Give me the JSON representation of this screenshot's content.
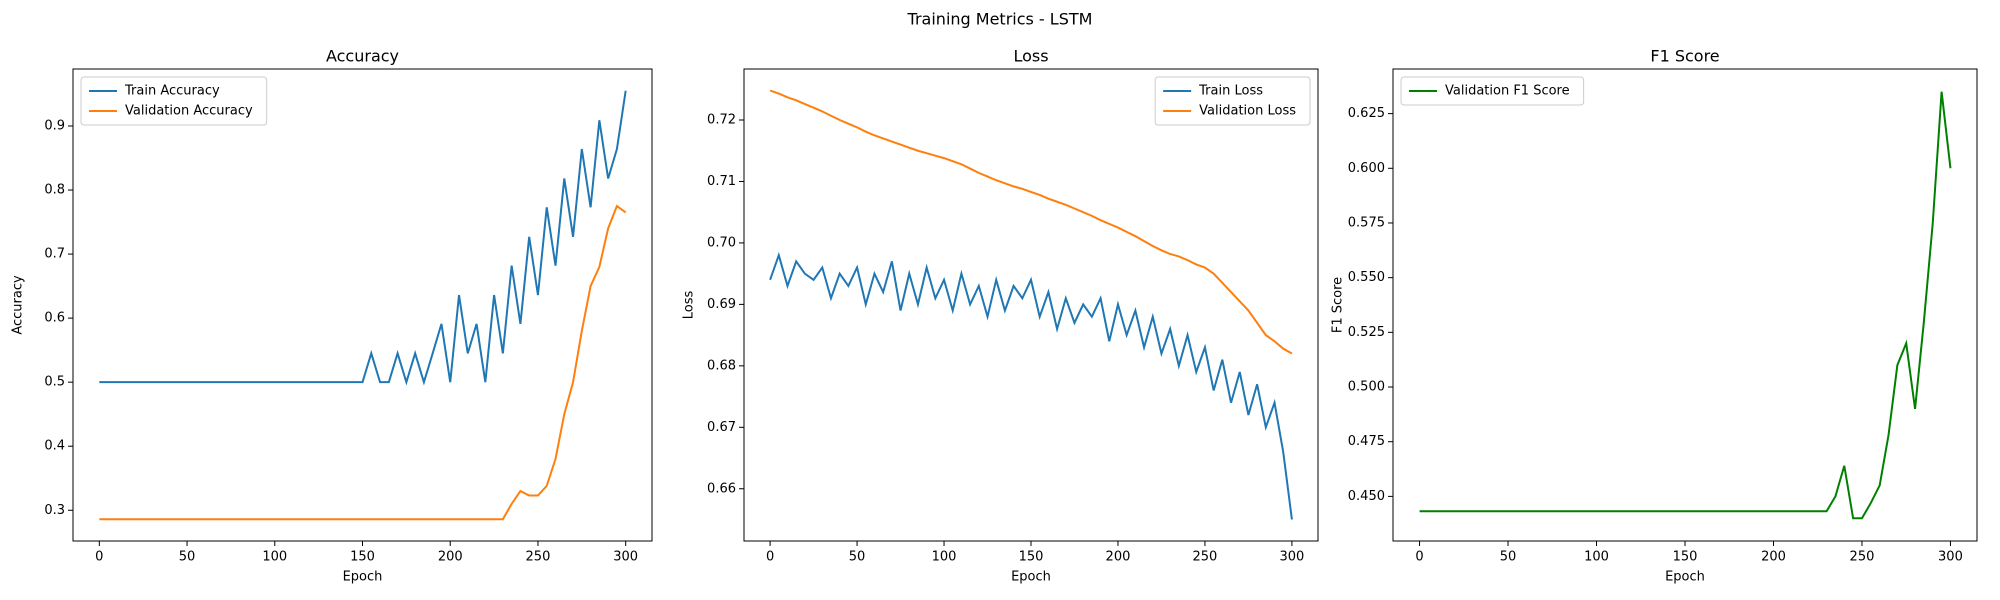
{
  "title": "Training Metrics - LSTM",
  "chart_data": [
    {
      "type": "line",
      "title": "Accuracy",
      "xlabel": "Epoch",
      "ylabel": "Accuracy",
      "x": [
        0,
        5,
        10,
        15,
        20,
        25,
        30,
        35,
        40,
        45,
        50,
        55,
        60,
        65,
        70,
        75,
        80,
        85,
        90,
        95,
        100,
        105,
        110,
        115,
        120,
        125,
        130,
        135,
        140,
        145,
        150,
        155,
        160,
        165,
        170,
        175,
        180,
        185,
        190,
        195,
        200,
        205,
        210,
        215,
        220,
        225,
        230,
        235,
        240,
        245,
        250,
        255,
        260,
        265,
        270,
        275,
        280,
        285,
        290,
        295,
        300
      ],
      "series": [
        {
          "name": "Train Accuracy",
          "color": "#1f77b4",
          "values": [
            0.5,
            0.5,
            0.5,
            0.5,
            0.5,
            0.5,
            0.5,
            0.5,
            0.5,
            0.5,
            0.5,
            0.5,
            0.5,
            0.5,
            0.5,
            0.5,
            0.5,
            0.5,
            0.5,
            0.5,
            0.5,
            0.5,
            0.5,
            0.5,
            0.5,
            0.5,
            0.5,
            0.5,
            0.5,
            0.5,
            0.5,
            0.545,
            0.5,
            0.5,
            0.545,
            0.5,
            0.545,
            0.5,
            0.545,
            0.591,
            0.5,
            0.636,
            0.545,
            0.591,
            0.5,
            0.636,
            0.545,
            0.682,
            0.591,
            0.727,
            0.636,
            0.773,
            0.682,
            0.818,
            0.727,
            0.864,
            0.773,
            0.909,
            0.818,
            0.864,
            0.955
          ]
        },
        {
          "name": "Validation Accuracy",
          "color": "#ff7f0e",
          "values": [
            0.286,
            0.286,
            0.286,
            0.286,
            0.286,
            0.286,
            0.286,
            0.286,
            0.286,
            0.286,
            0.286,
            0.286,
            0.286,
            0.286,
            0.286,
            0.286,
            0.286,
            0.286,
            0.286,
            0.286,
            0.286,
            0.286,
            0.286,
            0.286,
            0.286,
            0.286,
            0.286,
            0.286,
            0.286,
            0.286,
            0.286,
            0.286,
            0.286,
            0.286,
            0.286,
            0.286,
            0.286,
            0.286,
            0.286,
            0.286,
            0.286,
            0.286,
            0.286,
            0.286,
            0.286,
            0.286,
            0.286,
            0.31,
            0.33,
            0.323,
            0.323,
            0.338,
            0.38,
            0.45,
            0.5,
            0.58,
            0.65,
            0.68,
            0.74,
            0.775,
            0.765
          ]
        }
      ],
      "xlim": [
        -15,
        315
      ],
      "xticks": [
        0,
        50,
        100,
        150,
        200,
        250,
        300
      ],
      "ylim": [
        0.252,
        0.989
      ],
      "yticks": [
        0.3,
        0.4,
        0.5,
        0.6,
        0.7,
        0.8,
        0.9
      ],
      "legend": "upper left"
    },
    {
      "type": "line",
      "title": "Loss",
      "xlabel": "Epoch",
      "ylabel": "Loss",
      "x": [
        0,
        5,
        10,
        15,
        20,
        25,
        30,
        35,
        40,
        45,
        50,
        55,
        60,
        65,
        70,
        75,
        80,
        85,
        90,
        95,
        100,
        105,
        110,
        115,
        120,
        125,
        130,
        135,
        140,
        145,
        150,
        155,
        160,
        165,
        170,
        175,
        180,
        185,
        190,
        195,
        200,
        205,
        210,
        215,
        220,
        225,
        230,
        235,
        240,
        245,
        250,
        255,
        260,
        265,
        270,
        275,
        280,
        285,
        290,
        295,
        300
      ],
      "series": [
        {
          "name": "Train Loss",
          "color": "#1f77b4",
          "values": [
            0.694,
            0.698,
            0.693,
            0.697,
            0.695,
            0.694,
            0.696,
            0.691,
            0.695,
            0.693,
            0.696,
            0.69,
            0.695,
            0.692,
            0.697,
            0.689,
            0.695,
            0.69,
            0.696,
            0.691,
            0.694,
            0.689,
            0.695,
            0.69,
            0.693,
            0.688,
            0.694,
            0.689,
            0.693,
            0.691,
            0.694,
            0.688,
            0.692,
            0.686,
            0.691,
            0.687,
            0.69,
            0.688,
            0.691,
            0.684,
            0.69,
            0.685,
            0.689,
            0.683,
            0.688,
            0.682,
            0.686,
            0.68,
            0.685,
            0.679,
            0.683,
            0.676,
            0.681,
            0.674,
            0.679,
            0.672,
            0.677,
            0.67,
            0.674,
            0.666,
            0.655
          ]
        },
        {
          "name": "Validation Loss",
          "color": "#ff7f0e",
          "values": [
            0.7248,
            0.7243,
            0.7237,
            0.7232,
            0.7226,
            0.722,
            0.7214,
            0.7207,
            0.72,
            0.7194,
            0.7188,
            0.7181,
            0.7175,
            0.717,
            0.7165,
            0.716,
            0.7155,
            0.715,
            0.7146,
            0.7142,
            0.7138,
            0.7133,
            0.7128,
            0.7121,
            0.7114,
            0.7108,
            0.7102,
            0.7097,
            0.7092,
            0.7088,
            0.7083,
            0.7078,
            0.7072,
            0.7067,
            0.7062,
            0.7056,
            0.705,
            0.7044,
            0.7037,
            0.7031,
            0.7025,
            0.7018,
            0.7011,
            0.7003,
            0.6995,
            0.6988,
            0.6982,
            0.6978,
            0.6972,
            0.6965,
            0.696,
            0.695,
            0.6935,
            0.692,
            0.6905,
            0.689,
            0.687,
            0.685,
            0.684,
            0.6828,
            0.682
          ]
        }
      ],
      "xlim": [
        -15,
        315
      ],
      "xticks": [
        0,
        50,
        100,
        150,
        200,
        250,
        300
      ],
      "ylim": [
        0.6515,
        0.7283
      ],
      "yticks": [
        0.66,
        0.67,
        0.68,
        0.69,
        {
          "value": 0.7,
          "label": "0.70"
        },
        0.71,
        0.72
      ],
      "legend": "upper right"
    },
    {
      "type": "line",
      "title": "F1 Score",
      "xlabel": "Epoch",
      "ylabel": "F1 Score",
      "x": [
        0,
        5,
        10,
        15,
        20,
        25,
        30,
        35,
        40,
        45,
        50,
        55,
        60,
        65,
        70,
        75,
        80,
        85,
        90,
        95,
        100,
        105,
        110,
        115,
        120,
        125,
        130,
        135,
        140,
        145,
        150,
        155,
        160,
        165,
        170,
        175,
        180,
        185,
        190,
        195,
        200,
        205,
        210,
        215,
        220,
        225,
        230,
        235,
        240,
        245,
        250,
        255,
        260,
        265,
        270,
        275,
        280,
        285,
        290,
        295,
        300
      ],
      "series": [
        {
          "name": "Validation F1 Score",
          "color": "#008000",
          "values": [
            0.4432,
            0.4432,
            0.4432,
            0.4432,
            0.4432,
            0.4432,
            0.4432,
            0.4432,
            0.4432,
            0.4432,
            0.4432,
            0.4432,
            0.4432,
            0.4432,
            0.4432,
            0.4432,
            0.4432,
            0.4432,
            0.4432,
            0.4432,
            0.4432,
            0.4432,
            0.4432,
            0.4432,
            0.4432,
            0.4432,
            0.4432,
            0.4432,
            0.4432,
            0.4432,
            0.4432,
            0.4432,
            0.4432,
            0.4432,
            0.4432,
            0.4432,
            0.4432,
            0.4432,
            0.4432,
            0.4432,
            0.4432,
            0.4432,
            0.4432,
            0.4432,
            0.4432,
            0.4432,
            0.4432,
            0.45,
            0.464,
            0.44,
            0.44,
            0.447,
            0.455,
            0.478,
            0.51,
            0.52,
            0.49,
            0.53,
            0.575,
            0.635,
            0.6
          ]
        }
      ],
      "xlim": [
        -15,
        315
      ],
      "xticks": [
        0,
        50,
        100,
        150,
        200,
        250,
        300
      ],
      "ylim": [
        0.4296,
        0.6454
      ],
      "yticks": [
        {
          "value": 0.45,
          "label": "0.450"
        },
        0.475,
        {
          "value": 0.5,
          "label": "0.500"
        },
        0.525,
        {
          "value": 0.55,
          "label": "0.550"
        },
        0.575,
        {
          "value": 0.6,
          "label": "0.600"
        },
        0.625
      ],
      "legend": "upper left"
    }
  ]
}
